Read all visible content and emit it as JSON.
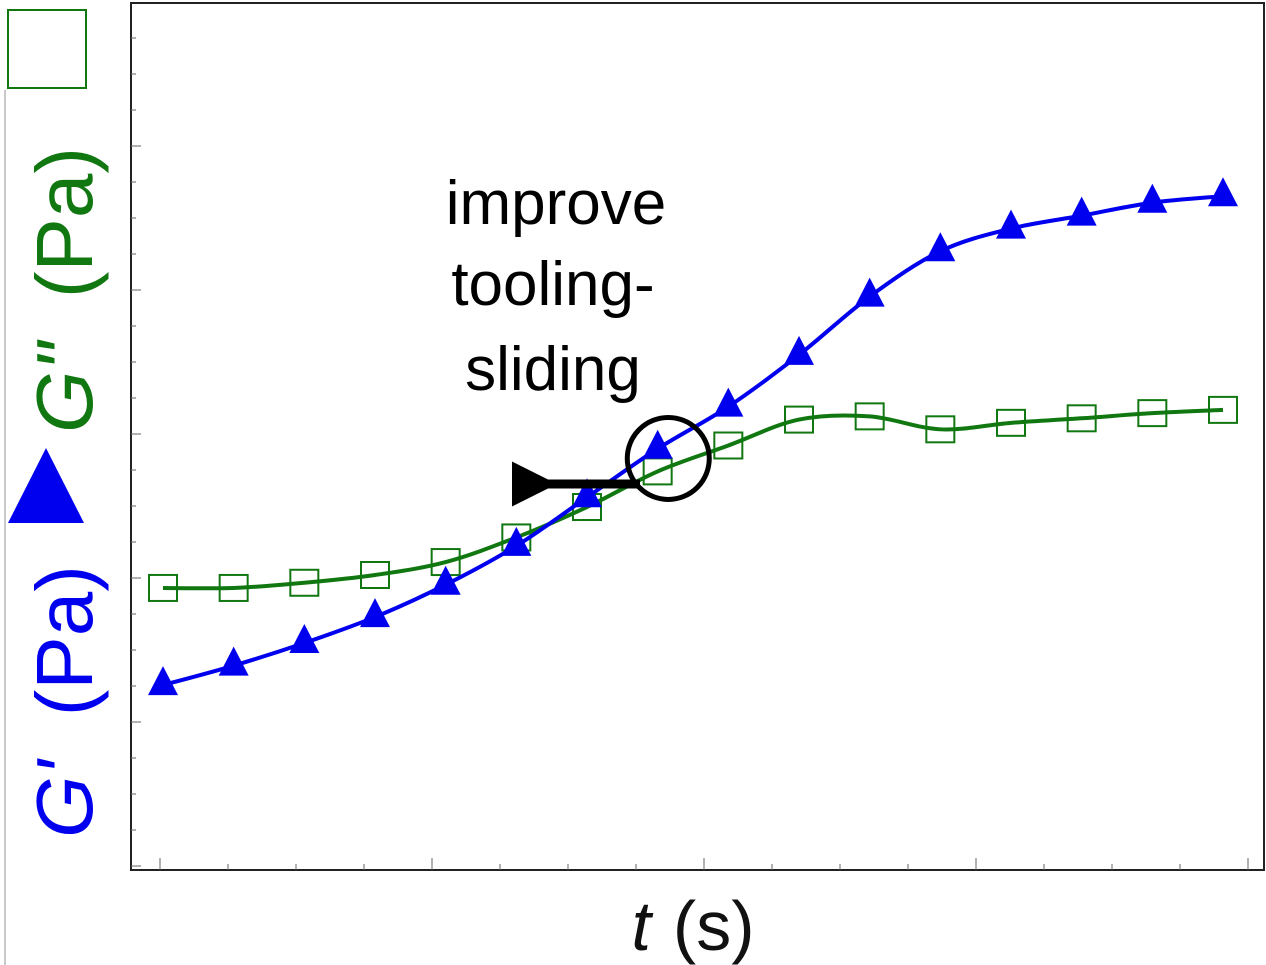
{
  "chart_data": {
    "type": "line",
    "xlabel": "t (s)",
    "ylabel": {
      "g1": "G'",
      "g1_unit": "(Pa)",
      "g2": "G\"",
      "g2_unit": "(Pa)"
    },
    "x_ticklabels_shown": false,
    "y_ticklabels_shown": false,
    "xlim": [
      0,
      16
    ],
    "ylim": [
      0,
      12
    ],
    "x": [
      0,
      1,
      2,
      3,
      4,
      5,
      6,
      7,
      8,
      9,
      10,
      11,
      12,
      13,
      14,
      15
    ],
    "series": [
      {
        "name": "G'",
        "color": "#0000ee",
        "marker": "filled-triangle",
        "values": [
          2.3,
          2.6,
          2.95,
          3.35,
          3.85,
          4.45,
          5.2,
          5.95,
          6.6,
          7.4,
          8.3,
          9.0,
          9.35,
          9.55,
          9.75,
          9.85
        ]
      },
      {
        "name": "G\"",
        "color": "#117711",
        "marker": "open-square",
        "values": [
          3.8,
          3.8,
          3.88,
          4.0,
          4.2,
          4.58,
          5.05,
          5.6,
          6.0,
          6.4,
          6.45,
          6.25,
          6.35,
          6.42,
          6.5,
          6.55
        ]
      }
    ],
    "annotations": [
      {
        "text_lines": [
          "improve",
          "tooling-",
          "sliding"
        ]
      }
    ],
    "crossover_marker": {
      "x": 7.15,
      "y": 5.8
    },
    "arrow_direction": "left",
    "grid": false,
    "legend": "none (encoded in y-axis label)"
  }
}
